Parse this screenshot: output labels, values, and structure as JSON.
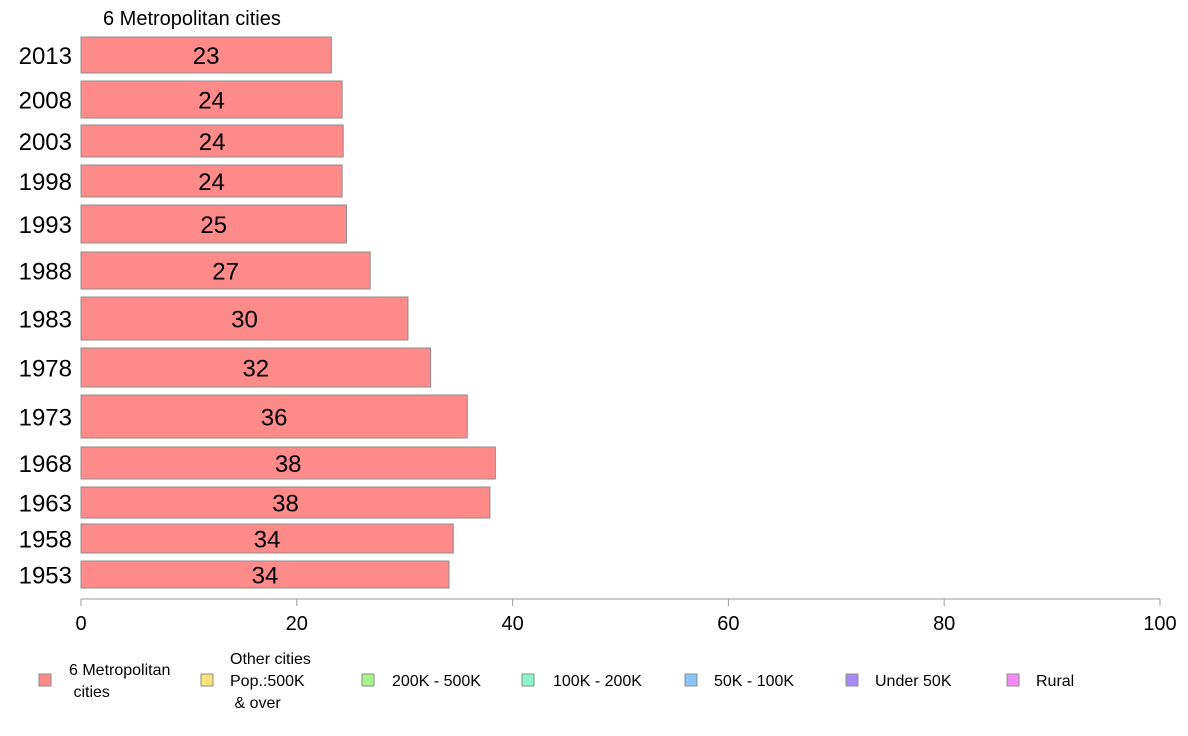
{
  "chart_data": {
    "type": "bar",
    "orientation": "horizontal",
    "title": "6 Metropolitan cities",
    "categories": [
      "2013",
      "2008",
      "2003",
      "1998",
      "1993",
      "1988",
      "1983",
      "1978",
      "1973",
      "1968",
      "1963",
      "1958",
      "1953"
    ],
    "series": [
      {
        "name": "6 Metropolitan cities",
        "color": "#ff8a8a",
        "values": [
          23.2,
          24.2,
          24.3,
          24.2,
          24.6,
          26.8,
          30.3,
          32.4,
          35.8,
          38.4,
          37.9,
          34.5,
          34.1
        ],
        "labels": [
          "23",
          "24",
          "24",
          "24",
          "25",
          "27",
          "30",
          "32",
          "36",
          "38",
          "38",
          "34",
          "34"
        ]
      }
    ],
    "xlim": [
      0,
      100
    ],
    "xticks": [
      "0",
      "20",
      "40",
      "60",
      "80",
      "100"
    ],
    "grid": false,
    "legend_position": "bottom",
    "legend": [
      {
        "lines": [
          "6 Metropolitan",
          " cities"
        ],
        "color": "#ff8a8a"
      },
      {
        "lines": [
          "Other cities",
          "Pop.:500K",
          " & over"
        ],
        "color": "#fde27a"
      },
      {
        "lines": [
          "200K - 500K"
        ],
        "color": "#a6f58a"
      },
      {
        "lines": [
          "100K - 200K"
        ],
        "color": "#8af5c9"
      },
      {
        "lines": [
          "50K - 100K"
        ],
        "color": "#8ac4fb"
      },
      {
        "lines": [
          "Under 50K"
        ],
        "color": "#a98af5"
      },
      {
        "lines": [
          "Rural"
        ],
        "color": "#f58af5"
      }
    ]
  }
}
